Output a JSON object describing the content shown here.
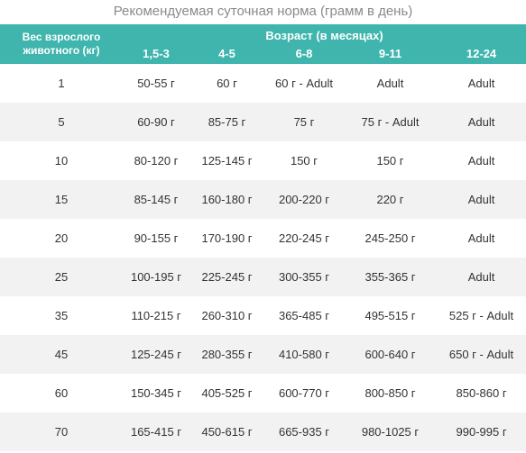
{
  "title": "Рекомендуемая суточная норма (грамм в день)",
  "header": {
    "weight_label": "Вес взрослого животного (кг)",
    "age_label": "Возраст (в месяцах)",
    "age_columns": [
      "1,5-3",
      "4-5",
      "6-8",
      "9-11",
      "12-24"
    ]
  },
  "rows": [
    {
      "weight": "1",
      "values": [
        "50-55 г",
        "60 г",
        "60 г - Adult",
        "Adult",
        "Adult"
      ]
    },
    {
      "weight": "5",
      "values": [
        "60-90 г",
        "85-75 г",
        "75 г",
        "75 г - Adult",
        "Adult"
      ]
    },
    {
      "weight": "10",
      "values": [
        "80-120 г",
        "125-145 г",
        "150 г",
        "150 г",
        "Adult"
      ]
    },
    {
      "weight": "15",
      "values": [
        "85-145 г",
        "160-180 г",
        "200-220 г",
        "220 г",
        "Adult"
      ]
    },
    {
      "weight": "20",
      "values": [
        "90-155 г",
        "170-190 г",
        "220-245 г",
        "245-250 г",
        "Adult"
      ]
    },
    {
      "weight": "25",
      "values": [
        "100-195 г",
        "225-245 г",
        "300-355 г",
        "355-365 г",
        "Adult"
      ]
    },
    {
      "weight": "35",
      "values": [
        "110-215 г",
        "260-310 г",
        "365-485 г",
        "495-515 г",
        "525 г - Adult"
      ]
    },
    {
      "weight": "45",
      "values": [
        "125-245 г",
        "280-355 г",
        "410-580 г",
        "600-640 г",
        "650 г - Adult"
      ]
    },
    {
      "weight": "60",
      "values": [
        "150-345 г",
        "405-525 г",
        "600-770 г",
        "800-850 г",
        "850-860 г"
      ]
    },
    {
      "weight": "70",
      "values": [
        "165-415 г",
        "450-615 г",
        "665-935 г",
        "980-1025 г",
        "990-995 г"
      ]
    }
  ]
}
